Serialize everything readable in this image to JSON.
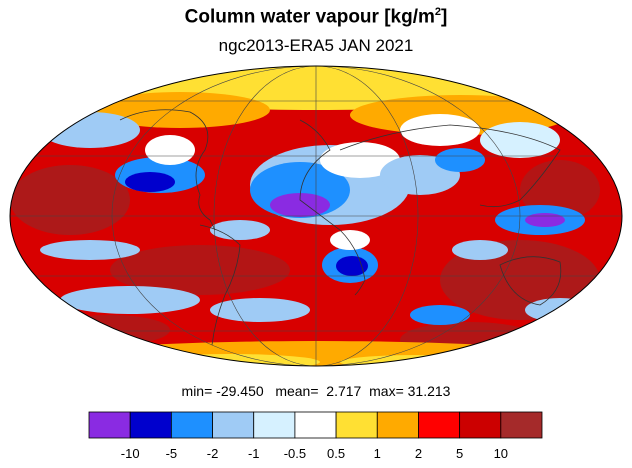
{
  "title": {
    "text": "Column water vapour [kg/m",
    "superscript": "2",
    "suffix": "]"
  },
  "subtitle": "ngc2013-ERA5  JAN 2021",
  "stats": {
    "min_label": "min=",
    "min_value": "-29.450",
    "mean_label": "mean=",
    "mean_value": "2.717",
    "max_label": "max=",
    "max_value": "31.213"
  },
  "colorbar": {
    "colors": [
      "#8a2be2",
      "#0000cd",
      "#1e90ff",
      "#9fcbf5",
      "#d6f1ff",
      "#ffffff",
      "#ffe033",
      "#ffaa00",
      "#ff0000",
      "#cc0000",
      "#a52a2a"
    ],
    "tick_labels": [
      "-10",
      "-5",
      "-2",
      "-1",
      "-0.5",
      "0.5",
      "1",
      "2",
      "5",
      "10"
    ]
  },
  "map": {
    "projection": "Mollweide",
    "field_palette": {
      "strong_positive": "#9b2323",
      "positive": "#d80000",
      "weak_positive": "#ff1a1a",
      "moderate_positive": "#ffaa00",
      "slight_positive": "#ffe033",
      "near_zero": "#ffffff",
      "slight_negative": "#d6f1ff",
      "negative": "#9fcbf5",
      "moderate_negative": "#1e90ff",
      "strong_negative": "#0000cd",
      "very_negative": "#8a2be2"
    }
  }
}
